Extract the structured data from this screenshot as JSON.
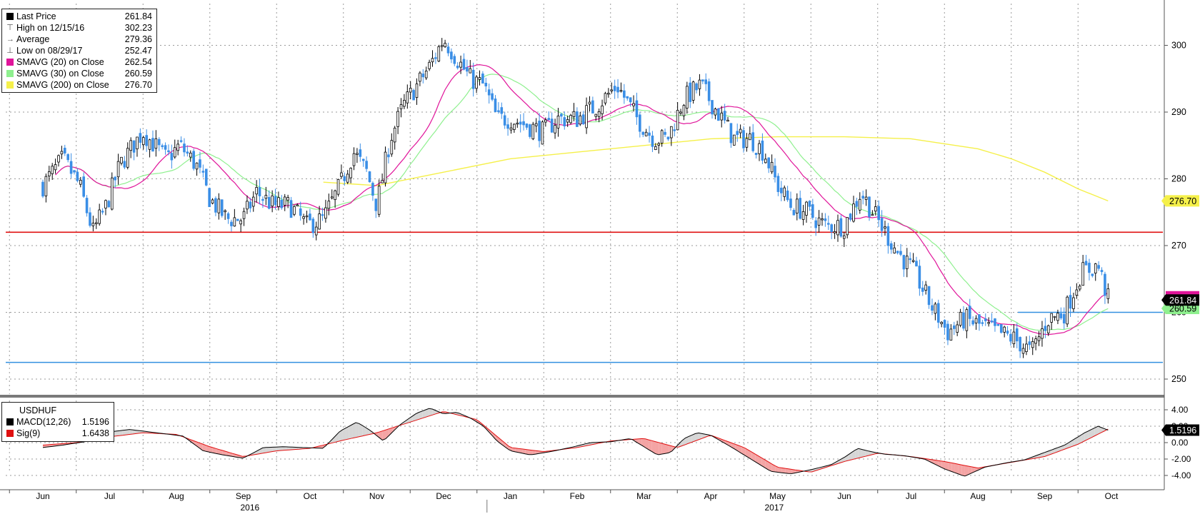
{
  "chart_data": [
    {
      "type": "candlestick",
      "title": "",
      "ylim": [
        245,
        305
      ],
      "yticks": [
        "250",
        "260",
        "270",
        "280",
        "290",
        "300"
      ],
      "x_month_labels": [
        "Jun",
        "Jul",
        "Aug",
        "Sep",
        "Oct",
        "Nov",
        "Dec",
        "Jan",
        "Feb",
        "Mar",
        "Apr",
        "May",
        "Jun",
        "Jul",
        "Aug",
        "Sep",
        "Oct"
      ],
      "x_year_labels": [
        "2016",
        "2017"
      ],
      "legend": [
        {
          "label": "Last Price",
          "value": "261.84",
          "color": "#000000",
          "symbol": "square"
        },
        {
          "label": "High on 12/15/16",
          "value": "302.23",
          "color": "#555555",
          "symbol": "high"
        },
        {
          "label": "Average",
          "value": "279.36",
          "color": "#555555",
          "symbol": "avg"
        },
        {
          "label": "Low on 08/29/17",
          "value": "252.47",
          "color": "#555555",
          "symbol": "low"
        },
        {
          "label": "SMAVG (20) on Close",
          "value": "262.54",
          "color": "#e0149a",
          "symbol": "square"
        },
        {
          "label": "SMAVG (30) on Close",
          "value": "260.59",
          "color": "#8ff08f",
          "symbol": "square"
        },
        {
          "label": "SMAVG (200) on Close",
          "value": "276.70",
          "color": "#f5f04a",
          "symbol": "square"
        }
      ],
      "horizontal_lines": [
        {
          "value": 272.0,
          "color": "#e01010"
        },
        {
          "value": 252.5,
          "color": "#3390e0"
        },
        {
          "value": 260.0,
          "color": "#3390e0",
          "start_month": 14.6
        }
      ],
      "price_path": [
        [
          0.0,
          279
        ],
        [
          0.3,
          283
        ],
        [
          0.55,
          279
        ],
        [
          0.75,
          272
        ],
        [
          0.95,
          276
        ],
        [
          1.15,
          282
        ],
        [
          1.35,
          285
        ],
        [
          1.5,
          287
        ],
        [
          1.85,
          283
        ],
        [
          2.05,
          285
        ],
        [
          2.3,
          282
        ],
        [
          2.5,
          277
        ],
        [
          2.75,
          274
        ],
        [
          3.0,
          274
        ],
        [
          3.2,
          278
        ],
        [
          3.45,
          276
        ],
        [
          3.7,
          276
        ],
        [
          3.95,
          273
        ],
        [
          4.2,
          274
        ],
        [
          4.45,
          279
        ],
        [
          4.65,
          284
        ],
        [
          4.85,
          281
        ],
        [
          5.0,
          276
        ],
        [
          5.2,
          286
        ],
        [
          5.4,
          291
        ],
        [
          5.6,
          294
        ],
        [
          5.8,
          297
        ],
        [
          6.0,
          301
        ],
        [
          6.2,
          298
        ],
        [
          6.4,
          295
        ],
        [
          6.6,
          294
        ],
        [
          6.8,
          289
        ],
        [
          7.0,
          289
        ],
        [
          7.25,
          288
        ],
        [
          7.5,
          287
        ],
        [
          7.7,
          289
        ],
        [
          8.0,
          289
        ],
        [
          8.3,
          291
        ],
        [
          8.6,
          294
        ],
        [
          8.9,
          289
        ],
        [
          9.15,
          286
        ],
        [
          9.35,
          286
        ],
        [
          9.6,
          292
        ],
        [
          9.85,
          294
        ],
        [
          10.1,
          290
        ],
        [
          10.35,
          286
        ],
        [
          10.6,
          286
        ],
        [
          10.8,
          284
        ],
        [
          11.0,
          279
        ],
        [
          11.2,
          276
        ],
        [
          11.45,
          275
        ],
        [
          11.7,
          273
        ],
        [
          12.0,
          273
        ],
        [
          12.25,
          278
        ],
        [
          12.55,
          273
        ],
        [
          12.8,
          269
        ],
        [
          13.05,
          266
        ],
        [
          13.3,
          261
        ],
        [
          13.55,
          257
        ],
        [
          13.8,
          259
        ],
        [
          14.05,
          258
        ],
        [
          14.3,
          257
        ],
        [
          14.55,
          256
        ],
        [
          14.8,
          254
        ],
        [
          15.05,
          259
        ],
        [
          15.3,
          260
        ],
        [
          15.55,
          266
        ],
        [
          15.8,
          267
        ],
        [
          15.95,
          262
        ]
      ],
      "sma200_path": [
        [
          4.2,
          279.5
        ],
        [
          5.0,
          279
        ],
        [
          6.0,
          281
        ],
        [
          7.0,
          283
        ],
        [
          8.0,
          284
        ],
        [
          9.0,
          285
        ],
        [
          10.0,
          286
        ],
        [
          11.0,
          286.3
        ],
        [
          12.0,
          286.3
        ],
        [
          13.0,
          286
        ],
        [
          14.0,
          284.5
        ],
        [
          14.5,
          283
        ],
        [
          15.0,
          281
        ],
        [
          15.5,
          278.5
        ],
        [
          15.95,
          276.7
        ]
      ],
      "last_price_label": "261.84",
      "sma30_label": "260.59",
      "sma200_label": "276.70"
    },
    {
      "type": "line",
      "name": "USDHUF",
      "ylim": [
        -5,
        5
      ],
      "yticks": [
        "4.00",
        "2.00",
        "0.00",
        "-2.00",
        "-4.00"
      ],
      "legend": [
        {
          "label": "MACD(12,26)",
          "value": "1.5196",
          "color": "#000000"
        },
        {
          "label": "Sig(9)",
          "value": "1.6438",
          "color": "#e01010"
        }
      ],
      "series": [
        {
          "name": "MACD(12,26)",
          "x": [
            0.0,
            0.3,
            0.7,
            1.0,
            1.3,
            1.5,
            1.8,
            2.1,
            2.4,
            2.7,
            3.0,
            3.3,
            3.6,
            3.9,
            4.2,
            4.45,
            4.7,
            4.9,
            5.1,
            5.35,
            5.6,
            5.8,
            6.0,
            6.2,
            6.4,
            6.6,
            6.8,
            7.0,
            7.3,
            7.6,
            7.9,
            8.2,
            8.5,
            8.8,
            9.0,
            9.2,
            9.4,
            9.6,
            9.8,
            10.0,
            10.3,
            10.6,
            10.9,
            11.2,
            11.5,
            11.8,
            12.0,
            12.2,
            12.4,
            12.6,
            12.9,
            13.2,
            13.5,
            13.8,
            14.1,
            14.4,
            14.7,
            15.0,
            15.3,
            15.6,
            15.8,
            15.95
          ],
          "values": [
            -0.6,
            -0.3,
            0.2,
            1.3,
            1.6,
            1.4,
            1.1,
            0.8,
            -1.0,
            -1.5,
            -1.9,
            -0.6,
            -0.5,
            -0.6,
            -0.7,
            1.4,
            2.5,
            1.5,
            0.2,
            2.2,
            3.6,
            4.2,
            3.5,
            3.7,
            3.0,
            2.0,
            0.2,
            -1.0,
            -1.5,
            -1.1,
            -0.6,
            0.0,
            0.1,
            0.5,
            -0.5,
            -1.5,
            -1.2,
            0.5,
            1.2,
            0.9,
            -0.5,
            -2.0,
            -3.5,
            -3.8,
            -3.3,
            -2.7,
            -1.8,
            -0.7,
            -1.1,
            -1.4,
            -1.6,
            -2.0,
            -3.2,
            -4.1,
            -3.0,
            -2.5,
            -2.1,
            -1.2,
            -0.3,
            1.2,
            2.0,
            1.52
          ]
        },
        {
          "name": "Sig(9)",
          "x": [
            0.0,
            0.5,
            1.0,
            1.5,
            2.0,
            2.5,
            3.0,
            3.5,
            4.0,
            4.5,
            5.0,
            5.5,
            6.0,
            6.5,
            7.0,
            7.5,
            8.0,
            8.5,
            9.0,
            9.5,
            10.0,
            10.5,
            11.0,
            11.5,
            12.0,
            12.5,
            13.0,
            13.5,
            14.0,
            14.5,
            15.0,
            15.5,
            15.95
          ],
          "values": [
            -0.3,
            0.0,
            0.7,
            1.2,
            1.0,
            -0.5,
            -1.7,
            -1.0,
            -0.7,
            0.3,
            1.2,
            2.5,
            3.8,
            2.8,
            -0.6,
            -1.1,
            -0.6,
            0.2,
            0.5,
            -0.6,
            0.9,
            -0.6,
            -3.0,
            -3.6,
            -2.3,
            -1.3,
            -1.7,
            -2.3,
            -3.1,
            -2.4,
            -1.7,
            -0.2,
            1.64
          ]
        }
      ],
      "macd_label": "1.5196",
      "sig_label": "1.6438"
    }
  ],
  "colors": {
    "up": "#000000",
    "down": "#3a8ee6",
    "sma20": "#e0149a",
    "sma30": "#8ff08f",
    "sma200": "#f5f04a",
    "grid": "#9a9a9a",
    "macd_fill": "#f4a4a4",
    "macd_fill_alt": "#d6d6d6"
  }
}
